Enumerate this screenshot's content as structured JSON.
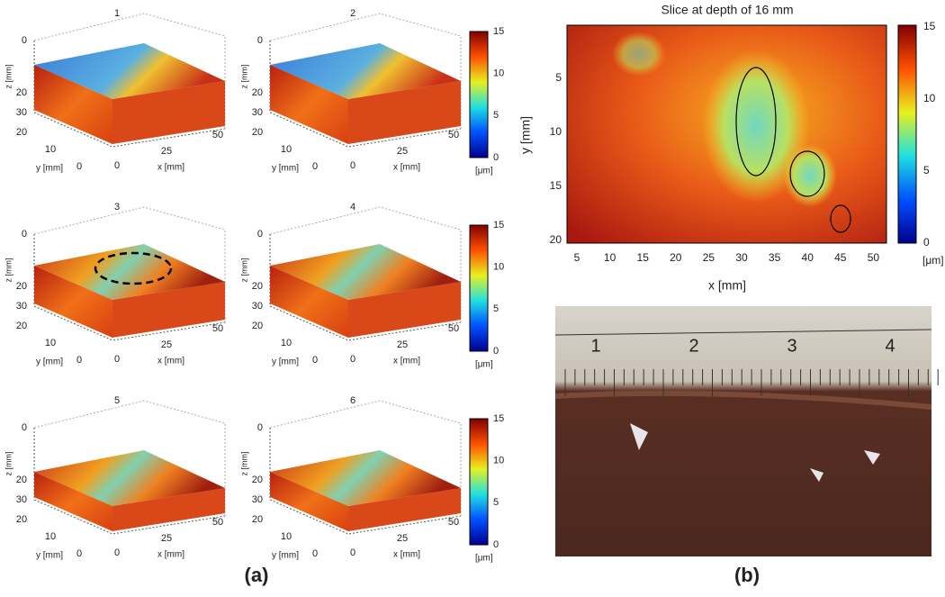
{
  "panel_a": {
    "caption": "(a)",
    "plots": [
      {
        "title": "1",
        "z_label": "z [mm]",
        "y_label": "y [mm]",
        "x_label": "x [mm]",
        "z_ticks": [
          0,
          20,
          30
        ],
        "y_ticks": [
          20,
          10,
          0
        ],
        "x_ticks": [
          0,
          25,
          50
        ]
      },
      {
        "title": "2",
        "z_label": "z [mm]",
        "y_label": "y [mm]",
        "x_label": "x [mm]",
        "z_ticks": [
          0,
          20,
          30
        ],
        "y_ticks": [
          20,
          10,
          0
        ],
        "x_ticks": [
          0,
          25,
          50
        ]
      },
      {
        "title": "3",
        "z_label": "z [mm]",
        "y_label": "y [mm]",
        "x_label": "x [mm]",
        "z_ticks": [
          0,
          20,
          30
        ],
        "y_ticks": [
          20,
          10,
          0
        ],
        "x_ticks": [
          0,
          25,
          50
        ]
      },
      {
        "title": "4",
        "z_label": "z [mm]",
        "y_label": "y [mm]",
        "x_label": "x [mm]",
        "z_ticks": [
          0,
          20,
          30
        ],
        "y_ticks": [
          20,
          10,
          0
        ],
        "x_ticks": [
          0,
          25,
          50
        ]
      },
      {
        "title": "5",
        "z_label": "z [mm]",
        "y_label": "y [mm]",
        "x_label": "x [mm]",
        "z_ticks": [
          0,
          20,
          30
        ],
        "y_ticks": [
          20,
          10,
          0
        ],
        "x_ticks": [
          0,
          25,
          50
        ]
      },
      {
        "title": "6",
        "z_label": "z [mm]",
        "y_label": "y [mm]",
        "x_label": "x [mm]",
        "z_ticks": [
          0,
          20,
          30
        ],
        "y_ticks": [
          20,
          10,
          0
        ],
        "x_ticks": [
          0,
          25,
          50
        ]
      }
    ],
    "colorbars": [
      {
        "ticks": [
          15,
          10,
          5,
          0
        ],
        "unit": "[μm]"
      },
      {
        "ticks": [
          15,
          10,
          5,
          0
        ],
        "unit": "[μm]"
      },
      {
        "ticks": [
          15,
          10,
          5,
          0
        ],
        "unit": "[μm]"
      }
    ]
  },
  "panel_b": {
    "caption": "(b)",
    "heatmap": {
      "title": "Slice at depth of 16 mm",
      "x_label": "x [mm]",
      "y_label": "y [mm]",
      "x_ticks": [
        5,
        10,
        15,
        20,
        25,
        30,
        35,
        40,
        45,
        50
      ],
      "y_ticks": [
        5,
        10,
        15,
        20
      ],
      "colorbar_ticks": [
        15,
        10,
        5,
        0
      ],
      "colorbar_unit": "[μm]"
    },
    "photo": {
      "ruler_labels": [
        "1",
        "2",
        "3",
        "4"
      ]
    }
  }
}
